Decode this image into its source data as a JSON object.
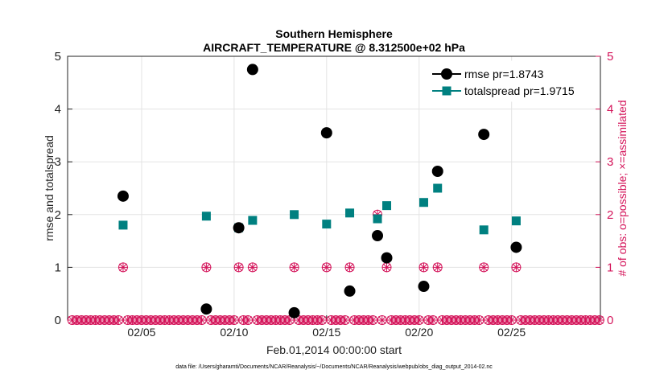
{
  "chart_data": {
    "type": "scatter",
    "title": "Southern Hemisphere",
    "subtitle": "AIRCRAFT_TEMPERATURE @ 8.312500e+02 hPa",
    "xlabel": "Feb.01,2014 00:00:00 start",
    "ylabel": "rmse and totalspread",
    "ylabel_right": "# of obs: o=possible; ×=assimilated",
    "footnote": "data file: /Users/gharamti/Documents/NCAR/Reanalysis/~/Documents/NCAR/Reanalysis/webpub/obs_diag_output_2014-02.nc",
    "xlim": [
      1,
      29.8
    ],
    "ylim": [
      0,
      5
    ],
    "ylim_right": [
      0,
      5
    ],
    "x_ticks": [
      5,
      10,
      15,
      20,
      25
    ],
    "x_tick_labels": [
      "02/05",
      "02/10",
      "02/15",
      "02/20",
      "02/25"
    ],
    "y_ticks": [
      0,
      1,
      2,
      3,
      4,
      5
    ],
    "y_tick_labels": [
      "0",
      "1",
      "2",
      "3",
      "4",
      "5"
    ],
    "y_right_tick_labels": [
      "0",
      "1",
      "2",
      "3",
      "4",
      "5"
    ],
    "grid": true,
    "legend_position": "top-right",
    "series": [
      {
        "name": "rmse",
        "legend_label": "rmse pr=1.8743",
        "color": "#000000",
        "marker": "circle",
        "x": [
          4.0,
          8.5,
          10.25,
          11.0,
          13.25,
          15.0,
          16.25,
          17.75,
          18.25,
          20.25,
          21.0,
          23.5,
          25.25
        ],
        "y": [
          2.35,
          0.21,
          1.75,
          4.75,
          0.14,
          3.55,
          0.55,
          1.6,
          1.18,
          0.64,
          2.82,
          3.52,
          1.38
        ]
      },
      {
        "name": "totalspread",
        "legend_label": "totalspread pr=1.9715",
        "color": "#008080",
        "marker": "square",
        "x": [
          4.0,
          8.5,
          10.25,
          11.0,
          13.25,
          15.0,
          16.25,
          17.75,
          18.25,
          20.25,
          21.0,
          23.5,
          25.25
        ],
        "y": [
          1.8,
          1.97,
          1.75,
          1.89,
          2.0,
          1.82,
          2.03,
          1.92,
          2.17,
          2.23,
          2.5,
          1.71,
          1.88
        ]
      }
    ],
    "obs_count": {
      "color": "#d4145a",
      "x_start": 1.25,
      "x_step": 0.25,
      "points": 115,
      "nonzero": [
        {
          "x": 4.0,
          "possible": 1,
          "assimilated": 1
        },
        {
          "x": 8.5,
          "possible": 1,
          "assimilated": 1
        },
        {
          "x": 10.25,
          "possible": 1,
          "assimilated": 1
        },
        {
          "x": 11.0,
          "possible": 1,
          "assimilated": 1
        },
        {
          "x": 13.25,
          "possible": 1,
          "assimilated": 1
        },
        {
          "x": 15.0,
          "possible": 1,
          "assimilated": 1
        },
        {
          "x": 16.25,
          "possible": 1,
          "assimilated": 1
        },
        {
          "x": 17.75,
          "possible": 2,
          "assimilated": 2
        },
        {
          "x": 18.25,
          "possible": 1,
          "assimilated": 1
        },
        {
          "x": 20.25,
          "possible": 1,
          "assimilated": 1
        },
        {
          "x": 21.0,
          "possible": 1,
          "assimilated": 1
        },
        {
          "x": 23.5,
          "possible": 1,
          "assimilated": 1
        },
        {
          "x": 25.25,
          "possible": 1,
          "assimilated": 1
        }
      ]
    }
  }
}
